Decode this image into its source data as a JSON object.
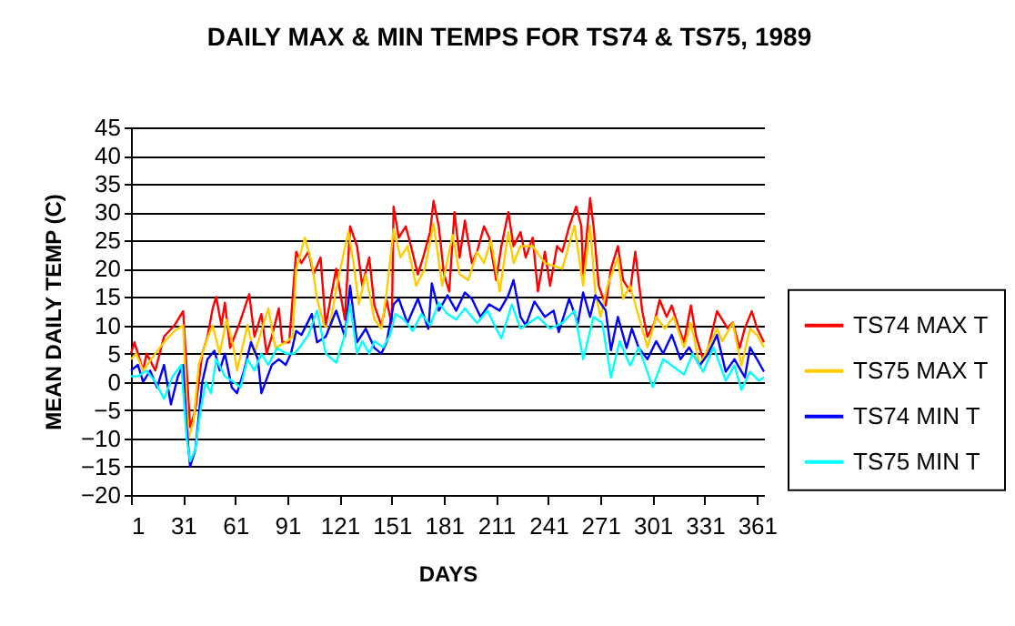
{
  "chart_data": {
    "type": "line",
    "title": "DAILY MAX & MIN TEMPS FOR TS74 & TS75, 1989",
    "xlabel": "DAYS",
    "ylabel": "MEAN DAILY TEMP (C)",
    "xlim": [
      1,
      365
    ],
    "xticks": [
      1,
      31,
      61,
      91,
      121,
      151,
      181,
      211,
      241,
      271,
      301,
      331,
      361
    ],
    "ylim": [
      -20,
      45
    ],
    "yticks": [
      -20,
      -15,
      -10,
      -5,
      0,
      5,
      10,
      15,
      20,
      25,
      30,
      35,
      40,
      45
    ],
    "grid": "y",
    "legend": "right",
    "line_style": "solid",
    "series": [
      {
        "name": "TS74 MAX T",
        "color": "#ff0000",
        "x": [
          1,
          3,
          8,
          10,
          15,
          20,
          26,
          31,
          35,
          38,
          42,
          45,
          48,
          50,
          53,
          55,
          58,
          63,
          69,
          72,
          76,
          79,
          82,
          86,
          88,
          92,
          96,
          99,
          103,
          106,
          110,
          113,
          119,
          124,
          127,
          131,
          134,
          138,
          141,
          145,
          148,
          151,
          152,
          155,
          159,
          162,
          166,
          169,
          173,
          175,
          178,
          181,
          184,
          187,
          190,
          193,
          197,
          200,
          204,
          207,
          211,
          214,
          218,
          221,
          225,
          228,
          232,
          235,
          239,
          242,
          246,
          249,
          253,
          257,
          260,
          261,
          265,
          267,
          270,
          274,
          277,
          281,
          284,
          288,
          291,
          295,
          298,
          302,
          305,
          309,
          312,
          316,
          319,
          323,
          326,
          330,
          333,
          338,
          344,
          347,
          351,
          354,
          358,
          361,
          365
        ],
        "values": [
          5,
          7,
          2,
          5,
          2,
          8,
          10,
          12.5,
          -8,
          -5,
          5,
          8,
          13,
          15,
          10,
          14,
          6,
          10,
          15.5,
          8,
          12,
          5,
          8,
          13,
          7,
          7,
          23,
          21,
          23,
          19,
          22,
          10,
          20,
          11,
          27.5,
          24,
          17,
          22,
          13.5,
          10,
          14.5,
          10,
          31,
          25.5,
          27.5,
          24,
          19,
          22,
          26.5,
          32,
          27.5,
          19,
          16,
          30,
          22,
          28.5,
          21,
          23,
          27.5,
          25.5,
          18,
          24,
          30,
          24,
          26.5,
          22,
          25.5,
          16,
          23,
          17,
          24,
          23,
          27.5,
          31,
          27.5,
          19,
          32.5,
          27.5,
          17,
          13.5,
          20,
          24,
          18,
          16,
          23,
          12.5,
          8,
          10.5,
          14.5,
          11.5,
          13.5,
          9.5,
          7,
          13.5,
          8,
          4,
          6,
          12.5,
          9.5,
          10.5,
          6,
          9.5,
          12.5,
          9.5,
          7
        ]
      },
      {
        "name": "TS75 MAX T",
        "color": "#ffcc00",
        "x": [
          1,
          4,
          8,
          15,
          20,
          26,
          31,
          34,
          37,
          40,
          44,
          48,
          52,
          56,
          60,
          62,
          68,
          72,
          80,
          84,
          90,
          94,
          96,
          101,
          105,
          108,
          112,
          115,
          120,
          126,
          129,
          132,
          136,
          141,
          145,
          148,
          152,
          156,
          160,
          165,
          170,
          175,
          180,
          186,
          190,
          195,
          200,
          204,
          208,
          213,
          218,
          221,
          225,
          232,
          239,
          249,
          256,
          261,
          265,
          268,
          271,
          275,
          281,
          284,
          288,
          291,
          298,
          303,
          308,
          313,
          319,
          323,
          328,
          333,
          338,
          341,
          347,
          352,
          357,
          361,
          365
        ],
        "values": [
          4,
          5,
          2,
          5,
          7,
          9,
          10,
          -10,
          -7,
          3,
          7,
          10,
          5,
          11,
          6,
          2,
          10,
          5,
          13,
          6,
          7,
          8,
          20,
          25.5,
          21,
          14.7,
          10,
          9.4,
          18,
          26.5,
          21,
          13.7,
          19,
          11,
          9.4,
          15.8,
          27,
          22,
          24,
          17,
          20,
          28,
          17,
          26,
          19,
          18,
          23,
          21,
          25,
          16,
          26.5,
          21,
          24,
          24,
          21,
          20,
          27.6,
          17,
          27.6,
          15.8,
          11.5,
          17,
          22,
          14.7,
          17,
          13.7,
          6.1,
          11.5,
          9.4,
          11.5,
          6.1,
          10.4,
          2.9,
          6.1,
          9.4,
          7.2,
          10.4,
          2.9,
          9.4,
          8.3,
          6.1
        ]
      },
      {
        "name": "TS74 MIN T",
        "color": "#0000ff",
        "x": [
          1,
          5,
          8,
          12,
          16,
          20,
          24,
          28,
          31,
          33,
          35,
          38,
          42,
          45,
          49,
          52,
          55,
          59,
          62,
          66,
          70,
          74,
          76,
          82,
          86,
          90,
          93,
          96,
          99,
          105,
          108,
          113,
          119,
          124,
          127,
          131,
          136,
          141,
          145,
          148,
          152,
          155,
          160,
          166,
          172,
          174,
          178,
          183,
          188,
          193,
          197,
          202,
          207,
          213,
          218,
          221,
          225,
          228,
          233,
          239,
          244,
          247,
          253,
          258,
          261,
          265,
          268,
          274,
          277,
          281,
          286,
          289,
          293,
          298,
          303,
          307,
          312,
          317,
          322,
          328,
          333,
          338,
          343,
          348,
          354,
          357,
          361,
          365
        ],
        "values": [
          2,
          3,
          0,
          2,
          -1,
          3,
          -4,
          1,
          3,
          -8,
          -15,
          -12,
          0,
          4,
          5.5,
          2,
          5,
          -1,
          -2,
          2,
          7,
          4,
          -2,
          3,
          4,
          3,
          5,
          9,
          8.3,
          12,
          7,
          8,
          12.6,
          8,
          17,
          7,
          9.4,
          6,
          5,
          7,
          13.7,
          14.7,
          10.4,
          14.7,
          9.4,
          17.4,
          12.6,
          15.3,
          12.6,
          15.8,
          14.7,
          11.5,
          13.7,
          12.6,
          15.3,
          18,
          11.5,
          10,
          14.2,
          11.5,
          12.6,
          8.8,
          14.7,
          10.4,
          15.8,
          11.5,
          15.3,
          12.6,
          5.6,
          11.5,
          6,
          9.4,
          6,
          4,
          7.2,
          5,
          8.3,
          4,
          6.1,
          2.9,
          5,
          8.3,
          1.8,
          4,
          0.8,
          6.1,
          4,
          1.8
        ]
      },
      {
        "name": "TS75 MIN T",
        "color": "#00ffff",
        "x": [
          1,
          5,
          10,
          15,
          20,
          25,
          30,
          33,
          35,
          38,
          41,
          44,
          47,
          50,
          55,
          60,
          64,
          68,
          72,
          76,
          80,
          85,
          90,
          95,
          98,
          103,
          108,
          113,
          119,
          124,
          127,
          131,
          134,
          138,
          141,
          146,
          150,
          153,
          158,
          163,
          168,
          173,
          178,
          183,
          188,
          193,
          200,
          206,
          211,
          214,
          220,
          225,
          228,
          235,
          242,
          249,
          256,
          261,
          267,
          272,
          277,
          282,
          288,
          293,
          301,
          307,
          312,
          319,
          324,
          330,
          336,
          343,
          348,
          352,
          357,
          362,
          365
        ],
        "values": [
          1,
          1,
          2,
          0,
          -3,
          1,
          3,
          -10,
          -14,
          -12,
          -5,
          0,
          -2,
          4,
          1,
          0,
          -1,
          4,
          2,
          5,
          3,
          6,
          5,
          5,
          6.1,
          8.3,
          12.6,
          5,
          3.4,
          8.3,
          13.7,
          5,
          7.2,
          5,
          7.2,
          6.1,
          8.3,
          12,
          11,
          9,
          12,
          10,
          14,
          12,
          11,
          13,
          10.4,
          12.6,
          9.4,
          7.7,
          13.7,
          9.4,
          10,
          11.5,
          9.4,
          10.4,
          12.6,
          4,
          11.5,
          10.4,
          0.8,
          7.2,
          2.9,
          6.1,
          -0.9,
          4,
          2.9,
          1.3,
          5,
          1.8,
          6.1,
          0.2,
          2.9,
          -1.4,
          1.8,
          0.2,
          0.8
        ]
      }
    ]
  }
}
